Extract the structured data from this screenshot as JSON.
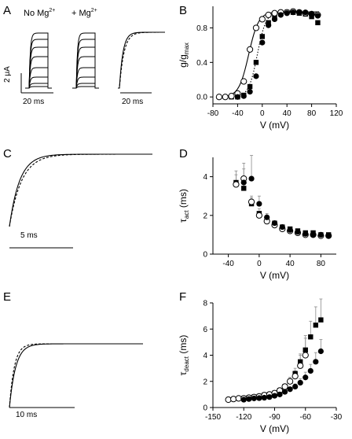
{
  "panel_letters": [
    "A",
    "B",
    "C",
    "D",
    "E",
    "F"
  ],
  "panelA": {
    "condition_labels": {
      "no_mg": "No Mg",
      "plus_mg": "+ Mg"
    },
    "superscript": "2+",
    "scale_current": "2 μA",
    "scale_time_left": "20 ms",
    "scale_time_right": "20 ms"
  },
  "panelC": {
    "scale_time": "5 ms"
  },
  "panelE": {
    "scale_time": "10 ms"
  },
  "chart_data": [
    {
      "panel": "B",
      "type": "scatter",
      "xlabel": "V (mV)",
      "ylabel_main": "g/g",
      "ylabel_sub": "max",
      "xlim": [
        -80,
        120
      ],
      "ylim": [
        -0.08,
        1.05
      ],
      "xticks": [
        "-80",
        "-40",
        "0",
        "40",
        "80",
        "120"
      ],
      "yticks": [
        "0.0",
        "0.4",
        "0.8"
      ],
      "series": [
        {
          "marker": "filled-square",
          "x": [
            -50,
            -40,
            -30,
            -20,
            -10,
            0,
            10,
            20,
            30,
            40,
            50,
            60,
            70,
            80,
            90
          ],
          "y": [
            0.0,
            0.0,
            0.02,
            0.12,
            0.4,
            0.7,
            0.86,
            0.93,
            0.97,
            0.98,
            0.98,
            0.97,
            0.96,
            0.93,
            0.86
          ]
        },
        {
          "marker": "open-circle",
          "x": [
            -70,
            -60,
            -50,
            -40,
            -30,
            -20,
            -10,
            0,
            10,
            20,
            30,
            40,
            50,
            60,
            70,
            80,
            90
          ],
          "y": [
            0.0,
            0.0,
            0.01,
            0.04,
            0.18,
            0.55,
            0.8,
            0.9,
            0.95,
            0.97,
            0.98,
            0.98,
            0.99,
            0.98,
            0.97,
            0.96,
            0.95
          ]
        },
        {
          "marker": "filled-circle",
          "x": [
            -40,
            -30,
            -20,
            -10,
            0,
            10,
            20,
            30,
            40,
            50,
            60,
            70,
            80,
            90
          ],
          "y": [
            0.0,
            0.01,
            0.06,
            0.24,
            0.63,
            0.83,
            0.9,
            0.95,
            0.97,
            0.98,
            0.98,
            0.98,
            0.96,
            0.94
          ]
        }
      ]
    },
    {
      "panel": "D",
      "type": "scatter",
      "xlabel": "V (mV)",
      "ylabel_main": "τ",
      "ylabel_sub": "act",
      "ylabel_unit": " (ms)",
      "xlim": [
        -60,
        100
      ],
      "ylim": [
        0,
        5
      ],
      "xticks": [
        "-40",
        "0",
        "40",
        "80"
      ],
      "yticks": [
        "0",
        "2",
        "4"
      ],
      "series": [
        {
          "marker": "filled-square",
          "x": [
            -30,
            -20,
            -10,
            0,
            10,
            20,
            30,
            40,
            50,
            60,
            70,
            80,
            90
          ],
          "y": [
            3.7,
            3.4,
            2.6,
            2.1,
            1.8,
            1.6,
            1.4,
            1.3,
            1.2,
            1.1,
            1.1,
            1.0,
            1.0
          ],
          "err": [
            0.6,
            0.5,
            0.3,
            0.25,
            0.2,
            0,
            0,
            0,
            0,
            0,
            0,
            0,
            0
          ]
        },
        {
          "marker": "open-circle",
          "x": [
            -30,
            -20,
            -10,
            0,
            10,
            20,
            30,
            40,
            50,
            60,
            70,
            80,
            90
          ],
          "y": [
            3.6,
            3.9,
            2.7,
            2.0,
            1.7,
            1.5,
            1.3,
            1.2,
            1.1,
            1.0,
            1.0,
            0.95,
            0.95
          ],
          "err": [
            0.5,
            0.5,
            0.3,
            0.2,
            0,
            0,
            0,
            0,
            0,
            0,
            0,
            0,
            0
          ]
        },
        {
          "marker": "filled-circle",
          "x": [
            -20,
            -10,
            0,
            10,
            20,
            30,
            40,
            50,
            60,
            70,
            80,
            90
          ],
          "y": [
            3.7,
            3.9,
            2.6,
            1.9,
            1.6,
            1.4,
            1.25,
            1.15,
            1.05,
            1.0,
            1.0,
            0.95
          ],
          "err": [
            1.0,
            1.2,
            0.4,
            0.2,
            0,
            0,
            0,
            0,
            0,
            0,
            0,
            0
          ]
        }
      ]
    },
    {
      "panel": "F",
      "type": "scatter",
      "xlabel": "V (mV)",
      "ylabel_main": "τ",
      "ylabel_sub": "deact",
      "ylabel_unit": " (ms)",
      "xlim": [
        -150,
        -30
      ],
      "ylim": [
        0,
        8
      ],
      "xticks": [
        "-150",
        "-120",
        "-90",
        "-60",
        "-30"
      ],
      "yticks": [
        "0",
        "2",
        "4",
        "6",
        "8"
      ],
      "series": [
        {
          "marker": "filled-square",
          "x": [
            -120,
            -115,
            -110,
            -105,
            -100,
            -95,
            -90,
            -85,
            -80,
            -75,
            -70,
            -65,
            -60,
            -55,
            -50,
            -45
          ],
          "y": [
            0.7,
            0.75,
            0.8,
            0.85,
            0.95,
            1.0,
            1.1,
            1.3,
            1.6,
            2.0,
            2.6,
            3.5,
            4.4,
            5.4,
            6.3,
            6.7
          ],
          "err": [
            0,
            0,
            0,
            0,
            0,
            0,
            0,
            0.1,
            0.2,
            0.3,
            0.4,
            0.6,
            0.9,
            1.2,
            1.4,
            1.6
          ]
        },
        {
          "marker": "open-circle",
          "x": [
            -135,
            -130,
            -125,
            -120,
            -115,
            -110,
            -105,
            -100,
            -95,
            -90,
            -85,
            -80,
            -75,
            -70,
            -65,
            -60
          ],
          "y": [
            0.6,
            0.65,
            0.7,
            0.7,
            0.75,
            0.8,
            0.85,
            0.95,
            1.0,
            1.1,
            1.3,
            1.6,
            2.0,
            2.4,
            3.2,
            4.0
          ],
          "err": [
            0,
            0,
            0,
            0,
            0,
            0,
            0,
            0,
            0,
            0,
            0.1,
            0.2,
            0.3,
            0.4,
            0.8,
            1.5
          ]
        },
        {
          "marker": "filled-circle",
          "x": [
            -120,
            -115,
            -110,
            -105,
            -100,
            -95,
            -90,
            -85,
            -80,
            -75,
            -70,
            -65,
            -60,
            -55,
            -50,
            -45
          ],
          "y": [
            0.6,
            0.65,
            0.7,
            0.72,
            0.75,
            0.8,
            0.9,
            1.0,
            1.2,
            1.4,
            1.6,
            1.9,
            2.3,
            2.8,
            3.5,
            4.3
          ],
          "err": [
            0,
            0,
            0,
            0,
            0,
            0,
            0,
            0,
            0.1,
            0.15,
            0.2,
            0.3,
            0.4,
            0.5,
            0.7,
            0.9
          ]
        }
      ]
    }
  ]
}
